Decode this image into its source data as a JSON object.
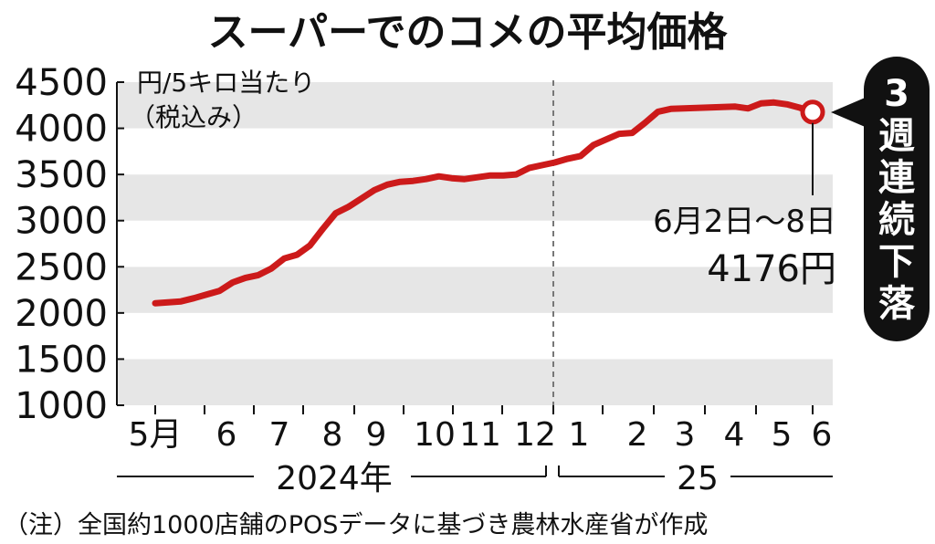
{
  "chart_data": {
    "type": "line",
    "title": "スーパーでのコメの平均価格",
    "unit_label_1": "円/5キロ当たり",
    "unit_label_2": "（税込み）",
    "ylim": [
      1000,
      4500
    ],
    "y_ticks": [
      "1000",
      "1500",
      "2000",
      "2500",
      "3000",
      "3500",
      "4000",
      "4500"
    ],
    "month_labels": [
      "5月",
      "6",
      "7",
      "8",
      "9",
      "10",
      "11",
      "12",
      "1",
      "2",
      "3",
      "4",
      "5",
      "6"
    ],
    "year_labels": [
      "2024年",
      "25"
    ],
    "series": [
      {
        "values": [
          2105,
          2115,
          2125,
          2160,
          2200,
          2240,
          2330,
          2380,
          2410,
          2480,
          2590,
          2630,
          2730,
          2910,
          3080,
          3150,
          3240,
          3330,
          3390,
          3420,
          3430,
          3450,
          3480,
          3460,
          3450,
          3470,
          3490,
          3490,
          3500,
          3570,
          3600,
          3630,
          3670,
          3700,
          3820,
          3880,
          3940,
          3950,
          4060,
          4180,
          4210,
          4215,
          4220,
          4225,
          4230,
          4235,
          4215,
          4270,
          4280,
          4260,
          4223,
          4176
        ]
      }
    ],
    "highlight": {
      "date_label": "6月2日～8日",
      "value_label": "4176円",
      "value": 4176
    },
    "callout_chars": [
      "3",
      "週",
      "連",
      "続",
      "下",
      "落"
    ],
    "footnote": "（注）全国約1000店舗のPOSデータに基づき農林水産省が作成",
    "colors": {
      "line": "#cc1a1a",
      "band": "#e6e6e6",
      "callout_bg": "#111111"
    }
  }
}
